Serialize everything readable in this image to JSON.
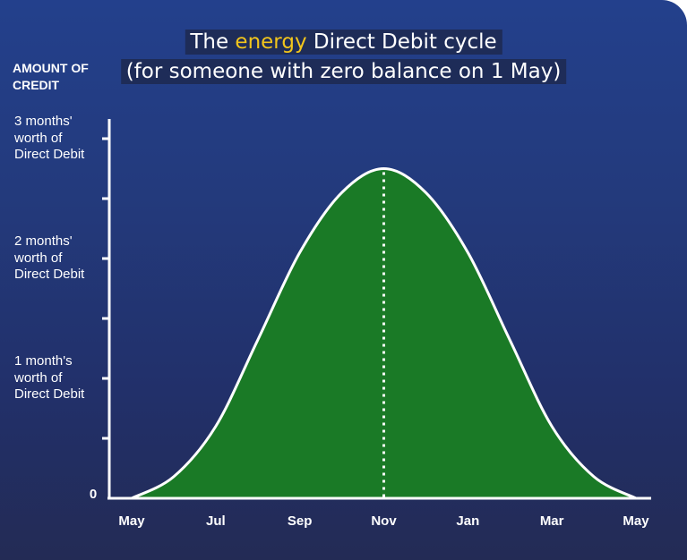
{
  "chart_data": {
    "type": "area",
    "title": {
      "line1_prefix": "The ",
      "line1_accent": "energy",
      "line1_suffix": " Direct Debit cycle",
      "line2": "(for someone with zero balance on 1 May)"
    },
    "ylabel": "AMOUNT OF CREDIT",
    "y_zero_label": "0",
    "y_ticks": [
      {
        "value": 1,
        "label": "1 month's\nworth of\nDirect Debit"
      },
      {
        "value": 2,
        "label": "2 months'\nworth of\nDirect Debit"
      },
      {
        "value": 3,
        "label": "3 months'\nworth of\nDirect Debit"
      }
    ],
    "y_minor_ticks": [
      0.5,
      1.5,
      2.5
    ],
    "ylim": [
      0,
      3.5
    ],
    "x_ticks": [
      "May",
      "Jul",
      "Sep",
      "Nov",
      "Jan",
      "Mar",
      "May"
    ],
    "x_month_offsets": [
      0,
      2,
      4,
      6,
      8,
      10,
      12
    ],
    "xlim": [
      0,
      12
    ],
    "x_values_months": [
      0,
      1,
      2,
      3,
      4,
      5,
      6,
      7,
      8,
      9,
      10,
      11,
      12
    ],
    "y_values": [
      0,
      0.18,
      0.6,
      1.32,
      2.05,
      2.55,
      2.75,
      2.55,
      2.05,
      1.32,
      0.6,
      0.18,
      0
    ],
    "peak_marker_month": 6,
    "colors": {
      "fill": "#1a7a26",
      "stroke": "#ffffff",
      "axis": "#ffffff",
      "accent": "#f2c51c"
    }
  }
}
